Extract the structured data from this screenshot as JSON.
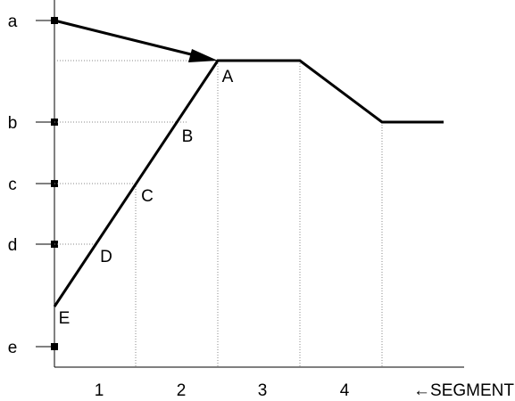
{
  "diagram": {
    "y_levels": [
      "a",
      "b",
      "c",
      "d",
      "e"
    ],
    "segments": [
      "1",
      "2",
      "3",
      "4"
    ],
    "segment_axis_label": "←SEGMENT",
    "point_labels": [
      "A",
      "B",
      "C",
      "D",
      "E"
    ]
  }
}
